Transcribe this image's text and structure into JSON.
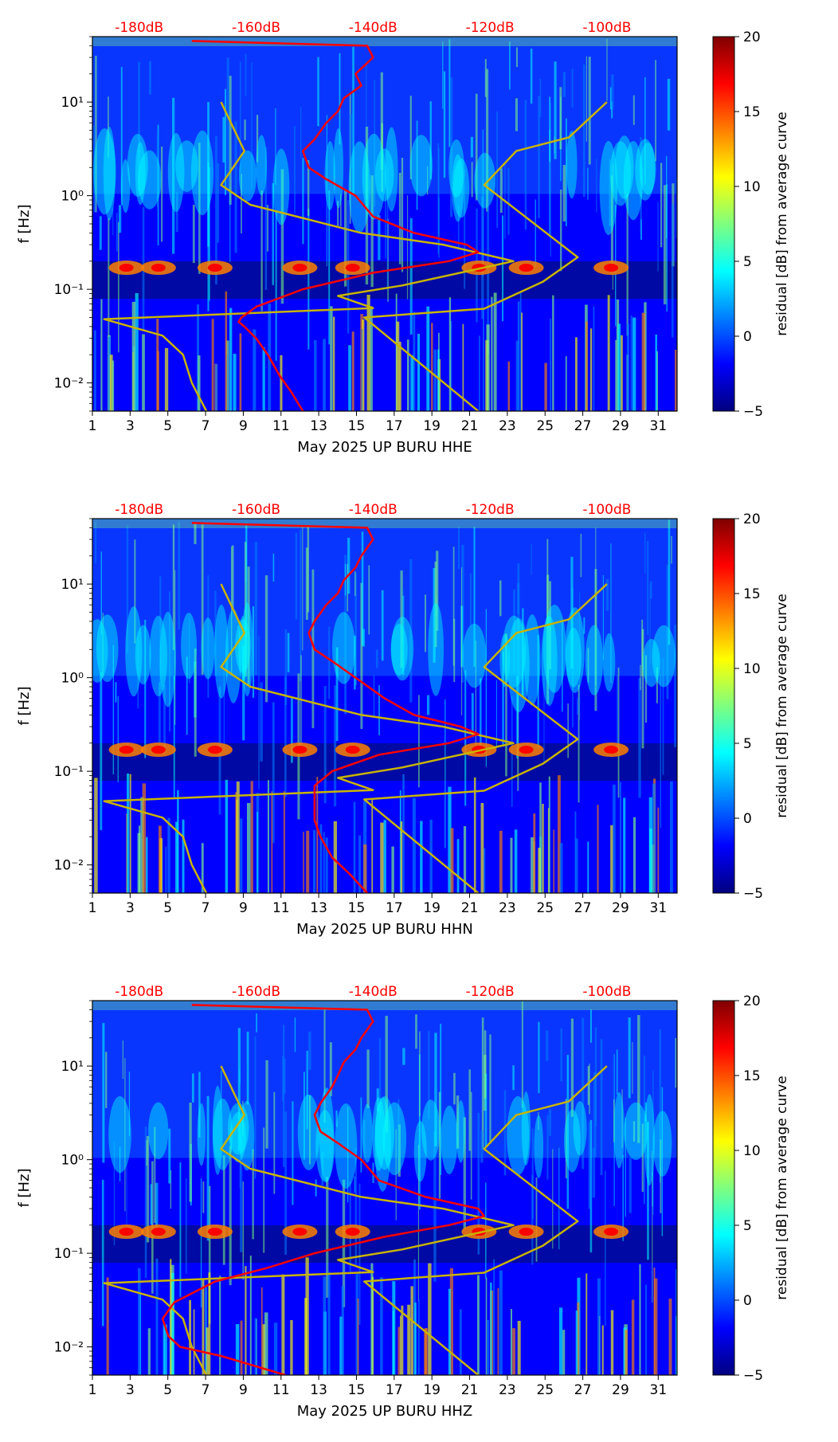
{
  "figure": {
    "colorbar_label": "residual [dB] from average curve",
    "colorbar_ticks": [
      20,
      15,
      10,
      5,
      0,
      -5
    ],
    "colorbar_tick_labels": [
      "20",
      "15",
      "10",
      "5",
      "0",
      "−5"
    ],
    "colormap": [
      "#00007f",
      "#0000ff",
      "#007fff",
      "#00ffff",
      "#7fff7f",
      "#ffff00",
      "#ff7f00",
      "#ff0000",
      "#7f0000"
    ],
    "ylabel": "f [Hz]",
    "x_ticks": [
      1,
      3,
      5,
      7,
      9,
      11,
      13,
      15,
      17,
      19,
      21,
      23,
      25,
      27,
      29,
      31
    ],
    "x_tick_labels": [
      "1",
      "3",
      "5",
      "7",
      "9",
      "11",
      "13",
      "15",
      "17",
      "19",
      "21",
      "23",
      "25",
      "27",
      "29",
      "31"
    ],
    "y_tick_labels": [
      "10¹",
      "10⁰",
      "10⁻¹",
      "10⁻²"
    ],
    "db_tick_labels": [
      "-180dB",
      "-160dB",
      "-140dB",
      "-120dB",
      "-100dB"
    ],
    "red_curve_color": "#ff0000",
    "model_curve_color": "#c8b400"
  },
  "chart_data": [
    {
      "type": "heatmap",
      "title": "",
      "xlabel": "May 2025 UP BURU  HHE",
      "ylabel": "f [Hz]",
      "xlim": [
        1,
        32
      ],
      "ylim_hz": [
        0.005,
        50
      ],
      "color_range_db": [
        -5,
        20
      ],
      "db_axis": {
        "ticks": [
          -180,
          -160,
          -140,
          -120,
          -100
        ],
        "range": [
          -188,
          -88
        ]
      },
      "noise_model_low": {
        "freq_hz": [
          0.005,
          0.01,
          0.02,
          0.032,
          0.048,
          0.063,
          0.085,
          0.11,
          0.2,
          0.3,
          0.4,
          0.8,
          1.3,
          3,
          10
        ],
        "db": [
          -168.5,
          -171,
          -172.5,
          -176,
          -186,
          -140,
          -146,
          -135,
          -116,
          -128,
          -142,
          -161,
          -166,
          -162,
          -166
        ]
      },
      "noise_model_high": {
        "freq_hz": [
          0.005,
          0.05,
          0.062,
          0.12,
          0.22,
          1.3,
          3.0,
          4.2,
          10
        ],
        "db": [
          -122,
          -141.5,
          -121,
          -111,
          -105,
          -121,
          -115.5,
          -106.5,
          -100
        ]
      },
      "median_curve": {
        "freq_hz": [
          0.005,
          0.008,
          0.012,
          0.02,
          0.03,
          0.04,
          0.045,
          0.05,
          0.065,
          0.1,
          0.15,
          0.2,
          0.25,
          0.3,
          0.4,
          0.6,
          1,
          1.5,
          2,
          3,
          4,
          6,
          8,
          11,
          15,
          20,
          30,
          40,
          45
        ],
        "db": [
          -152,
          -154,
          -156,
          -158,
          -160,
          -162,
          -163,
          -162.5,
          -160,
          -152,
          -140,
          -127,
          -122,
          -124,
          -133,
          -140,
          -143,
          -148,
          -151,
          -152,
          -150,
          -148,
          -146,
          -145,
          -142,
          -143,
          -140,
          -141,
          -171
        ]
      }
    },
    {
      "type": "heatmap",
      "title": "",
      "xlabel": "May 2025 UP BURU  HHN",
      "ylabel": "f [Hz]",
      "xlim": [
        1,
        32
      ],
      "ylim_hz": [
        0.005,
        50
      ],
      "color_range_db": [
        -5,
        20
      ],
      "db_axis": {
        "ticks": [
          -180,
          -160,
          -140,
          -120,
          -100
        ],
        "range": [
          -188,
          -88
        ]
      },
      "noise_model_low": {
        "freq_hz": [
          0.005,
          0.01,
          0.02,
          0.032,
          0.048,
          0.063,
          0.085,
          0.11,
          0.2,
          0.3,
          0.4,
          0.8,
          1.3,
          3,
          10
        ],
        "db": [
          -168.5,
          -171,
          -172.5,
          -176,
          -186,
          -140,
          -146,
          -135,
          -116,
          -128,
          -142,
          -161,
          -166,
          -162,
          -166
        ]
      },
      "noise_model_high": {
        "freq_hz": [
          0.005,
          0.05,
          0.062,
          0.12,
          0.22,
          1.3,
          3.0,
          4.2,
          10
        ],
        "db": [
          -122,
          -141.5,
          -121,
          -111,
          -105,
          -121,
          -115.5,
          -106.5,
          -100
        ]
      },
      "median_curve": {
        "freq_hz": [
          0.005,
          0.008,
          0.012,
          0.02,
          0.03,
          0.05,
          0.07,
          0.1,
          0.15,
          0.2,
          0.25,
          0.3,
          0.4,
          0.6,
          1,
          1.5,
          2,
          3,
          4,
          6,
          8,
          11,
          15,
          20,
          30,
          40,
          45
        ],
        "db": [
          -141,
          -144,
          -147,
          -149,
          -150,
          -150,
          -150,
          -147,
          -139,
          -127,
          -122,
          -125,
          -133,
          -138,
          -143,
          -147,
          -150,
          -151,
          -150,
          -148,
          -146,
          -145,
          -143,
          -142,
          -140,
          -141,
          -171
        ]
      }
    },
    {
      "type": "heatmap",
      "title": "",
      "xlabel": "May 2025 UP BURU  HHZ",
      "ylabel": "f [Hz]",
      "xlim": [
        1,
        32
      ],
      "ylim_hz": [
        0.005,
        50
      ],
      "color_range_db": [
        -5,
        20
      ],
      "db_axis": {
        "ticks": [
          -180,
          -160,
          -140,
          -120,
          -100
        ],
        "range": [
          -188,
          -88
        ]
      },
      "noise_model_low": {
        "freq_hz": [
          0.005,
          0.01,
          0.02,
          0.032,
          0.048,
          0.063,
          0.085,
          0.11,
          0.2,
          0.3,
          0.4,
          0.8,
          1.3,
          3,
          10
        ],
        "db": [
          -168.5,
          -171,
          -172.5,
          -176,
          -186,
          -140,
          -146,
          -135,
          -116,
          -128,
          -142,
          -161,
          -166,
          -162,
          -166
        ]
      },
      "noise_model_high": {
        "freq_hz": [
          0.005,
          0.05,
          0.062,
          0.12,
          0.22,
          1.3,
          3.0,
          4.2,
          10
        ],
        "db": [
          -122,
          -141.5,
          -121,
          -111,
          -105,
          -121,
          -115.5,
          -106.5,
          -100
        ]
      },
      "median_curve": {
        "freq_hz": [
          0.005,
          0.008,
          0.01,
          0.013,
          0.02,
          0.03,
          0.05,
          0.07,
          0.1,
          0.15,
          0.2,
          0.25,
          0.3,
          0.4,
          0.6,
          1,
          1.5,
          2,
          3,
          4,
          6,
          8,
          11,
          15,
          20,
          30,
          40,
          45
        ],
        "db": [
          -155,
          -166,
          -173,
          -175,
          -176,
          -174,
          -167,
          -158,
          -150,
          -138,
          -127,
          -121,
          -122,
          -131,
          -139,
          -142,
          -146,
          -149,
          -150,
          -149,
          -147,
          -146,
          -145,
          -143,
          -142,
          -140,
          -141,
          -171
        ]
      }
    }
  ]
}
